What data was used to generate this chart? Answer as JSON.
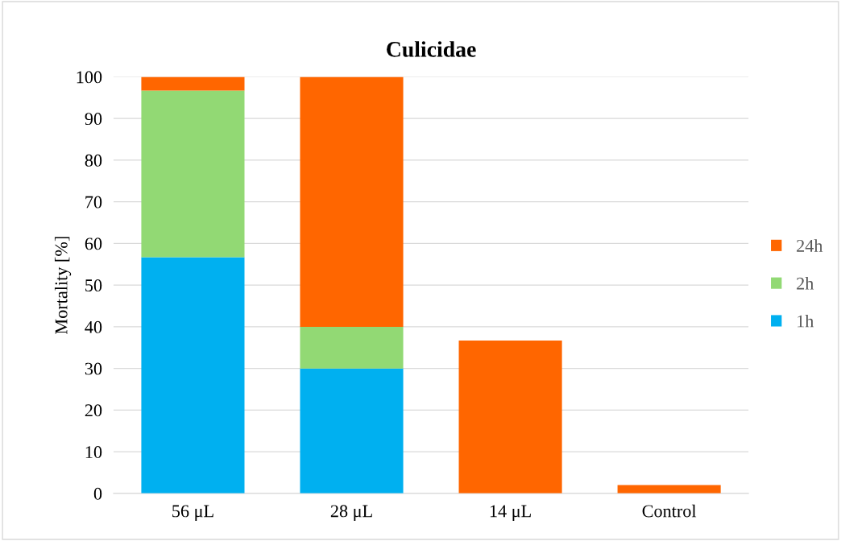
{
  "chart_data": {
    "type": "bar",
    "title": "Culicidae",
    "ylabel": "Mortality [%]",
    "categories": [
      "56 μL",
      "28 μL",
      "14 μL",
      "Control"
    ],
    "stacked": true,
    "series": [
      {
        "name": "1h",
        "color": "#00b0f0",
        "values": [
          56.7,
          30,
          0,
          0
        ]
      },
      {
        "name": "2h",
        "color": "#92d974",
        "values": [
          40,
          10,
          0,
          0
        ]
      },
      {
        "name": "24h",
        "color": "#ff6600",
        "values": [
          3.3,
          60,
          36.7,
          2
        ]
      }
    ],
    "ylim": [
      0,
      100
    ],
    "yticks": [
      0,
      10,
      20,
      30,
      40,
      50,
      60,
      70,
      80,
      90,
      100
    ],
    "grid": "y",
    "legend": "right"
  }
}
